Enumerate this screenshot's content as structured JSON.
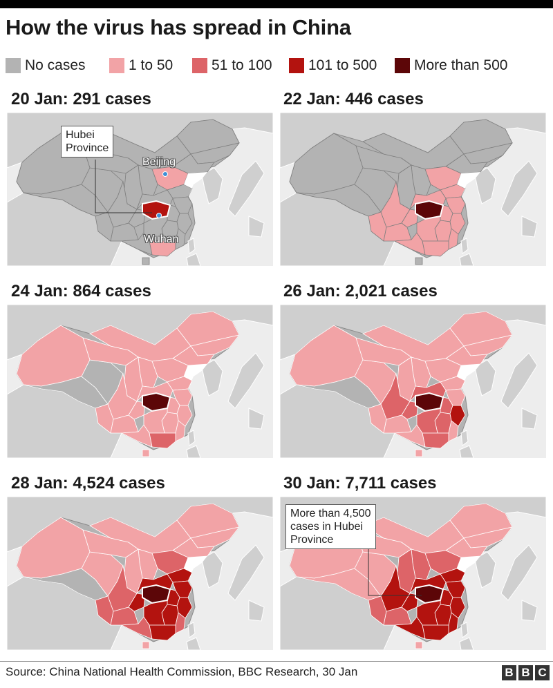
{
  "title": "How the virus has spread in China",
  "legend": [
    {
      "label": "No cases",
      "color": "#b3b3b3"
    },
    {
      "label": "1 to 50",
      "color": "#f2a3a6"
    },
    {
      "label": "51 to 100",
      "color": "#dd6468"
    },
    {
      "label": "101 to 500",
      "color": "#b3130f"
    },
    {
      "label": "More than 500",
      "color": "#5c0608"
    }
  ],
  "panels": [
    {
      "title": "20 Jan: 291 cases",
      "callout": "Hubei\nProvince",
      "city_labels": [
        "Beijing",
        "Wuhan"
      ]
    },
    {
      "title": "22 Jan: 446 cases"
    },
    {
      "title": "24 Jan: 864 cases"
    },
    {
      "title": "26 Jan: 2,021 cases"
    },
    {
      "title": "28 Jan: 4,524 cases"
    },
    {
      "title": "30 Jan: 7,711 cases",
      "callout": "More than 4,500\ncases in Hubei\nProvince"
    }
  ],
  "source": "Source: China National Health Commission, BBC Research, 30 Jan",
  "logo": [
    "B",
    "B",
    "C"
  ]
}
